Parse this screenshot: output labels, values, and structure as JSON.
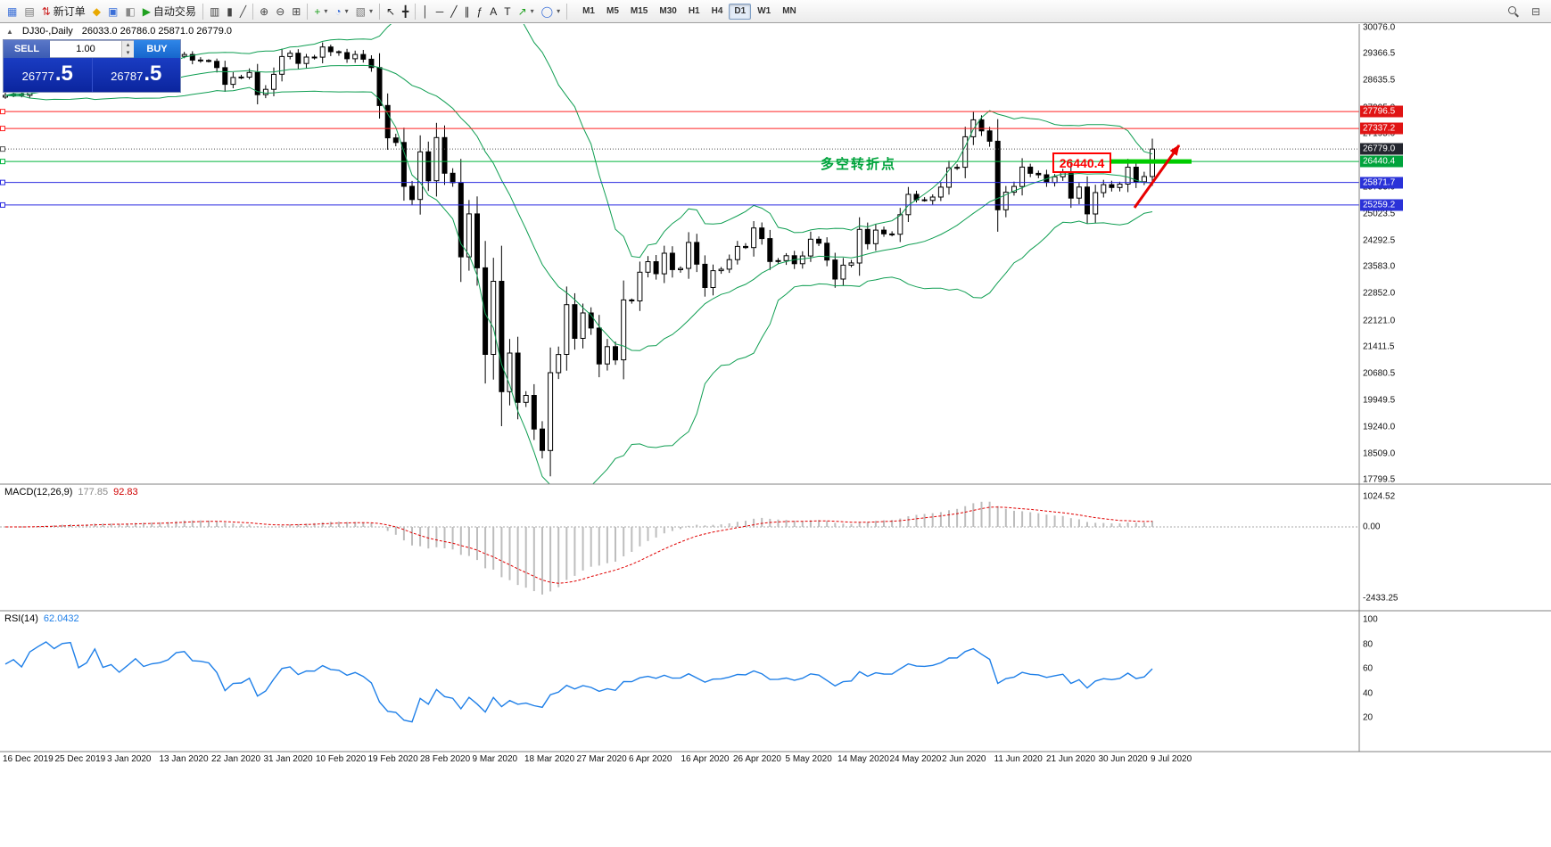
{
  "toolbar": {
    "dropdown_icon": "▾",
    "items": [
      {
        "name": "new-chart",
        "glyph": "▦",
        "color": "#3a6fd8"
      },
      {
        "name": "profiles",
        "glyph": "▤",
        "color": "#777777"
      },
      {
        "name": "new-order",
        "glyph": "⇅",
        "color": "#cc2222",
        "label": "新订单"
      },
      {
        "name": "metaquotes",
        "glyph": "◆",
        "color": "#e8a800"
      },
      {
        "name": "terminal",
        "glyph": "▣",
        "color": "#3a6fd8"
      },
      {
        "name": "metaeditor",
        "glyph": "◧",
        "color": "#888888"
      },
      {
        "name": "autotrading",
        "glyph": "▶",
        "color": "#1fa01f",
        "label": "自动交易"
      },
      {
        "sep": true
      },
      {
        "name": "bar-chart",
        "glyph": "▥",
        "color": "#444444"
      },
      {
        "name": "candlestick-chart",
        "glyph": "▮",
        "color": "#444444"
      },
      {
        "name": "line-chart",
        "glyph": "╱",
        "color": "#444444"
      },
      {
        "sep": true
      },
      {
        "name": "zoom-in",
        "glyph": "⊕",
        "color": "#444444"
      },
      {
        "name": "zoom-out",
        "glyph": "⊖",
        "color": "#444444"
      },
      {
        "name": "tile-windows",
        "glyph": "⊞",
        "color": "#444444"
      },
      {
        "sep": true
      },
      {
        "name": "indicators",
        "glyph": "+",
        "color": "#1fa01f",
        "dd": true
      },
      {
        "name": "periods",
        "glyph": "◔",
        "color": "#3a6fd8",
        "dd": true
      },
      {
        "name": "templates",
        "glyph": "▧",
        "color": "#777777",
        "dd": true
      },
      {
        "sep": true
      },
      {
        "name": "cursor",
        "glyph": "↖",
        "color": "#222222"
      },
      {
        "name": "crosshair",
        "glyph": "╋",
        "color": "#222222"
      },
      {
        "sep": true
      },
      {
        "name": "vertical-line",
        "glyph": "│",
        "color": "#222222"
      },
      {
        "name": "horizontal-line",
        "glyph": "─",
        "color": "#222222"
      },
      {
        "name": "trendline",
        "glyph": "╱",
        "color": "#222222"
      },
      {
        "name": "equidistant-channel",
        "glyph": "∥",
        "color": "#222222"
      },
      {
        "name": "fibonacci",
        "glyph": "ƒ",
        "color": "#222222"
      },
      {
        "name": "text",
        "glyph": "A",
        "color": "#222222"
      },
      {
        "name": "text-label",
        "glyph": "T",
        "color": "#222222"
      },
      {
        "name": "arrows",
        "glyph": "↗",
        "color": "#1fa01f",
        "dd": true
      },
      {
        "name": "cycles",
        "glyph": "◯",
        "color": "#3a6fd8",
        "dd": true
      },
      {
        "sep": true
      }
    ],
    "timeframes": [
      "M1",
      "M5",
      "M15",
      "M30",
      "H1",
      "H4",
      "D1",
      "W1",
      "MN"
    ],
    "active_timeframe": "D1",
    "right_items": [
      {
        "name": "search",
        "icon": "search"
      },
      {
        "name": "quick-nav",
        "glyph": "⊟",
        "color": "#555555"
      }
    ]
  },
  "chart_header": {
    "collapse_icon": "▲",
    "symbol_period": "DJ30-,Daily",
    "ohlc": "26033.0 26786.0 25871.0 26779.0"
  },
  "trade_panel": {
    "sell_label": "SELL",
    "buy_label": "BUY",
    "volume": "1.00",
    "vol_up_icon": "▴",
    "vol_down_icon": "▾",
    "sell_price": "26777",
    "sell_price_frac": ".5",
    "buy_price": "26787",
    "buy_price_frac": ".5"
  },
  "price_axis": {
    "ticks": [
      "30076.0",
      "29366.5",
      "28635.5",
      "27905.0",
      "27195.0",
      "26464.0",
      "25733.0",
      "25023.5",
      "24292.5",
      "23583.0",
      "22852.0",
      "22121.0",
      "21411.5",
      "20680.5",
      "19949.5",
      "19240.0",
      "18509.0",
      "17799.5"
    ]
  },
  "panels": {
    "macd": {
      "name": "MACD(12,26,9)",
      "value": "177.85",
      "signal_value": "92.83",
      "axis_labels": [
        "1024.52",
        "0.00",
        "-2433.25"
      ]
    },
    "rsi": {
      "name": "RSI(14)",
      "value": "62.0432",
      "axis_labels": [
        "100",
        "80",
        "60",
        "40",
        "20"
      ]
    }
  },
  "annotations": {
    "turning_point": "多空转折点",
    "price_callout": "26440.4",
    "support_price": 26440.4
  },
  "chart_data": {
    "type": "candlestick",
    "symbol": "DJ30-",
    "timeframe": "Daily",
    "ylim": [
      17799.5,
      30076.0
    ],
    "last_bar_ohlc": {
      "open": 26033.0,
      "high": 26786.0,
      "low": 25871.0,
      "close": 26779.0
    },
    "closes": [
      28235,
      28267,
      28239,
      28377,
      28455,
      28551,
      28515,
      28621,
      28645,
      28462,
      28538,
      28869,
      28635,
      28703,
      28584,
      28745,
      28957,
      28824,
      28907,
      28939,
      29030,
      29297,
      29348,
      29196,
      29186,
      29160,
      28990,
      28536,
      28723,
      28734,
      28859,
      28256,
      28400,
      28808,
      29291,
      29380,
      29103,
      29277,
      29276,
      29551,
      29423,
      29398,
      29232,
      29348,
      29220,
      28992,
      27961,
      27081,
      26958,
      25767,
      25409,
      26703,
      25917,
      27090,
      26121,
      25865,
      23851,
      25018,
      23553,
      21201,
      23186,
      20189,
      21237,
      19899,
      20087,
      19174,
      18592,
      20705,
      21200,
      22552,
      21637,
      22327,
      21917,
      20944,
      21413,
      21053,
      22680,
      22654,
      23434,
      23719,
      23391,
      23950,
      23504,
      23537,
      24242,
      23650,
      23018,
      23476,
      23515,
      23775,
      24134,
      24102,
      24634,
      24346,
      23724,
      23749,
      23883,
      23665,
      23876,
      24331,
      24222,
      23765,
      23248,
      23625,
      23685,
      24597,
      24207,
      24576,
      24474,
      24465,
      24995,
      25548,
      25401,
      25383,
      25475,
      25743,
      26270,
      26282,
      27111,
      27572,
      27272,
      26990,
      25128,
      25605,
      25763,
      26290,
      26120,
      26080,
      25871,
      26025,
      26156,
      25446,
      25746,
      25016,
      25596,
      25813,
      25735,
      25827,
      26287,
      25890,
      26033,
      26779
    ],
    "level_lines": [
      {
        "price": 27796.5,
        "text": "27796.5",
        "color": "#ff2222",
        "label_bg": "#e01414",
        "style": "solid"
      },
      {
        "price": 27337.2,
        "text": "27337.2",
        "color": "#ff2222",
        "label_bg": "#e01414",
        "style": "solid"
      },
      {
        "price": 26779.0,
        "text": "26779.0",
        "color": "#555555",
        "label_bg": "#23262e",
        "style": "dotted"
      },
      {
        "price": 26440.4,
        "text": "26440.4",
        "color": "#00b43c",
        "label_bg": "#00a33c",
        "style": "solid"
      },
      {
        "price": 25871.7,
        "text": "25871.7",
        "color": "#2a2ae0",
        "label_bg": "#2a32d8",
        "style": "solid"
      },
      {
        "price": 25259.2,
        "text": "25259.2",
        "color": "#2a2ae0",
        "label_bg": "#2a32d8",
        "style": "solid"
      }
    ],
    "indicators": {
      "bollinger": {
        "period": 20,
        "deviation": 2,
        "color": "#0f9e52"
      },
      "macd": {
        "fast": 12,
        "slow": 26,
        "signal": 9,
        "hist_color": "#bdbdbd",
        "signal_color": "#e00000",
        "range": [
          -2710,
          1310
        ]
      },
      "rsi": {
        "period": 14,
        "color": "#1e7fe8",
        "range": [
          -5,
          105
        ]
      }
    },
    "time_labels": [
      "16 Dec 2019",
      "25 Dec 2019",
      "3 Jan 2020",
      "13 Jan 2020",
      "22 Jan 2020",
      "31 Jan 2020",
      "10 Feb 2020",
      "19 Feb 2020",
      "28 Feb 2020",
      "9 Mar 2020",
      "18 Mar 2020",
      "27 Mar 2020",
      "6 Apr 2020",
      "16 Apr 2020",
      "26 Apr 2020",
      "5 May 2020",
      "14 May 2020",
      "24 May 2020",
      "2 Jun 2020",
      "11 Jun 2020",
      "21 Jun 2020",
      "30 Jun 2020",
      "9 Jul 2020"
    ]
  }
}
